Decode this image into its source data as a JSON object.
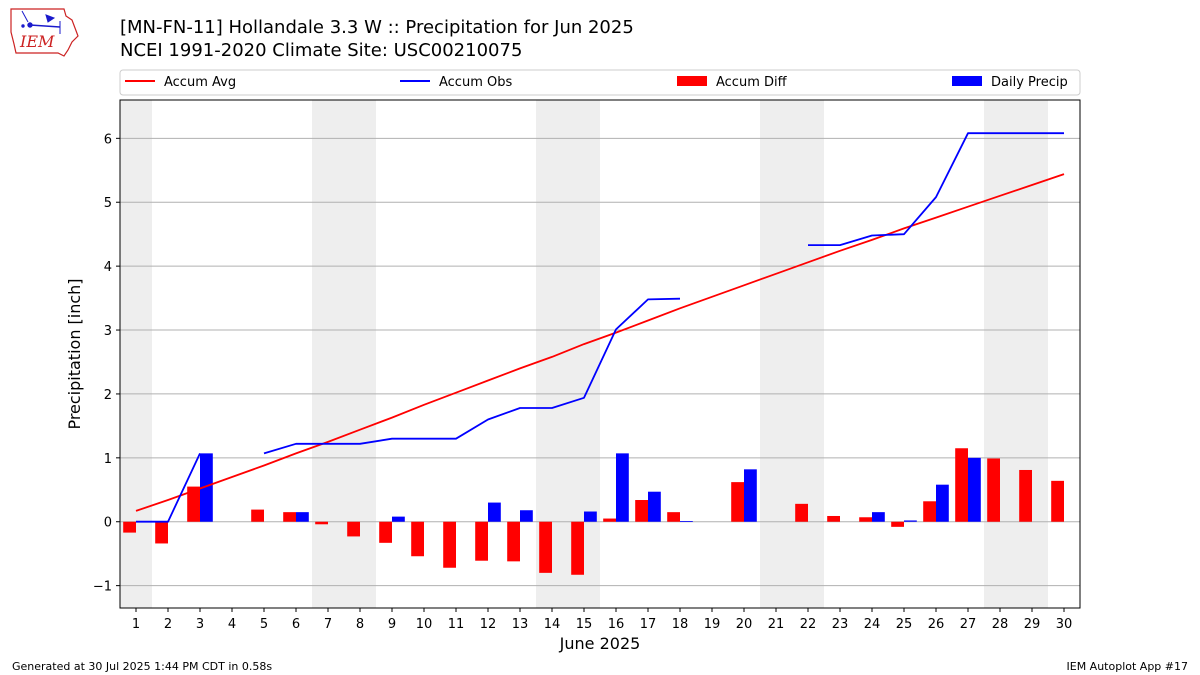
{
  "logo": {
    "text": "IEM",
    "colors": {
      "outline": "#cc2222",
      "symbol": "#1a1acc"
    }
  },
  "title_line1": "[MN-FN-11] Hollandale 3.3 W :: Precipitation for Jun 2025",
  "title_line2": "NCEI 1991-2020 Climate Site: USC00210075",
  "footer_left": "Generated at 30 Jul 2025 1:44 PM CDT in 0.58s",
  "footer_right": "IEM Autoplot App #17",
  "colors": {
    "avg": "#ff0000",
    "obs": "#0000ff",
    "diff": "#ff0000",
    "daily": "#0000ff",
    "weekend": "#eeeeee",
    "grid": "#b0b0b0"
  },
  "chart_data": {
    "type": "bar",
    "xlabel": "June 2025",
    "ylabel": "Precipitation [inch]",
    "xlim": [
      0.5,
      30.5
    ],
    "ylim": [
      -1.35,
      6.6
    ],
    "yticks": [
      -1,
      0,
      1,
      2,
      3,
      4,
      5,
      6
    ],
    "grid": true,
    "legend_placement": "top",
    "legend": [
      "Accum Avg",
      "Accum Obs",
      "Accum Diff",
      "Daily Precip"
    ],
    "days": [
      1,
      2,
      3,
      4,
      5,
      6,
      7,
      8,
      9,
      10,
      11,
      12,
      13,
      14,
      15,
      16,
      17,
      18,
      19,
      20,
      21,
      22,
      23,
      24,
      25,
      26,
      27,
      28,
      29,
      30
    ],
    "weekend_spans": [
      [
        0.5,
        1.5
      ],
      [
        6.5,
        8.5
      ],
      [
        13.5,
        15.5
      ],
      [
        20.5,
        22.5
      ],
      [
        27.5,
        29.5
      ]
    ],
    "series": [
      {
        "name": "Accum Avg",
        "type": "line",
        "values": [
          0.17,
          0.34,
          0.52,
          0.7,
          0.88,
          1.07,
          1.25,
          1.44,
          1.63,
          1.83,
          2.02,
          2.21,
          2.4,
          2.58,
          2.78,
          2.96,
          3.15,
          3.34,
          3.52,
          3.7,
          3.88,
          4.06,
          4.24,
          4.41,
          4.59,
          4.76,
          4.93,
          5.1,
          5.27,
          5.44
        ]
      },
      {
        "name": "Accum Obs",
        "type": "line",
        "values": [
          0.0,
          0.0,
          1.07,
          null,
          1.07,
          1.22,
          1.22,
          1.22,
          1.3,
          1.3,
          1.3,
          1.6,
          1.78,
          1.78,
          1.94,
          3.01,
          3.48,
          3.49,
          null,
          null,
          null,
          4.33,
          4.33,
          4.48,
          4.5,
          5.08,
          6.08,
          6.08,
          6.08,
          6.08
        ]
      },
      {
        "name": "Accum Diff",
        "type": "bar",
        "values": [
          -0.17,
          -0.34,
          0.55,
          null,
          0.19,
          0.15,
          -0.04,
          -0.23,
          -0.33,
          -0.54,
          -0.72,
          -0.61,
          -0.62,
          -0.8,
          -0.83,
          0.05,
          0.34,
          0.15,
          null,
          0.62,
          null,
          0.28,
          0.09,
          0.07,
          -0.08,
          0.32,
          1.15,
          0.99,
          0.81,
          0.64
        ]
      },
      {
        "name": "Daily Precip",
        "type": "bar",
        "values": [
          0,
          0,
          1.07,
          null,
          0,
          0.15,
          0,
          0,
          0.08,
          0,
          0,
          0.3,
          0.18,
          0,
          0.16,
          1.07,
          0.47,
          0.01,
          null,
          0.82,
          null,
          0,
          0,
          0.15,
          0.02,
          0.58,
          1.0,
          0,
          0,
          0
        ]
      }
    ]
  }
}
